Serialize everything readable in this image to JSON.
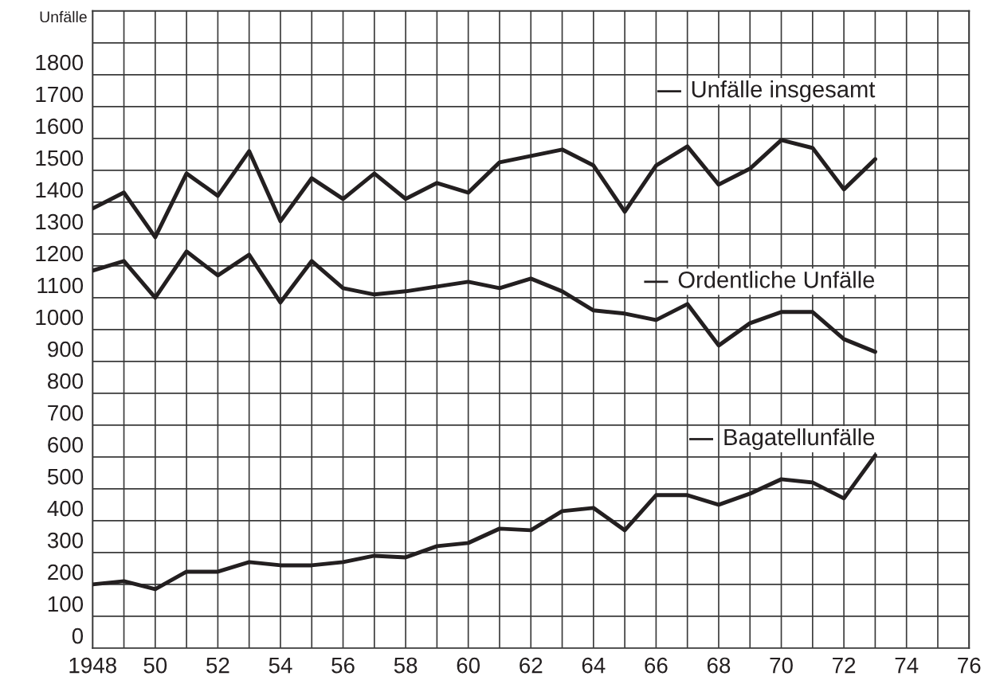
{
  "chart_data": {
    "type": "line",
    "ylabel": "Unfälle",
    "x": [
      1948,
      1949,
      1950,
      1951,
      1952,
      1953,
      1954,
      1955,
      1956,
      1957,
      1958,
      1959,
      1960,
      1961,
      1962,
      1963,
      1964,
      1965,
      1966,
      1967,
      1968,
      1969,
      1970,
      1971,
      1972,
      1973
    ],
    "series": [
      {
        "name": "Unfälle insgesamt",
        "color": "#231f20",
        "values": [
          1380,
          1430,
          1290,
          1490,
          1420,
          1560,
          1340,
          1475,
          1410,
          1490,
          1410,
          1460,
          1430,
          1525,
          1545,
          1565,
          1515,
          1370,
          1515,
          1575,
          1455,
          1505,
          1595,
          1570,
          1440,
          1535
        ]
      },
      {
        "name": "Ordentliche Unfälle",
        "color": "#231f20",
        "values": [
          1185,
          1215,
          1100,
          1245,
          1170,
          1235,
          1085,
          1215,
          1130,
          1110,
          1120,
          1135,
          1150,
          1130,
          1160,
          1120,
          1060,
          1050,
          1030,
          1080,
          950,
          1020,
          1055,
          1055,
          970,
          930
        ]
      },
      {
        "name": "Bagatellunfälle",
        "color": "#231f20",
        "values": [
          200,
          210,
          185,
          240,
          240,
          270,
          260,
          260,
          270,
          290,
          285,
          320,
          330,
          375,
          370,
          430,
          440,
          370,
          480,
          480,
          450,
          485,
          530,
          520,
          470,
          605
        ]
      }
    ],
    "xlim": [
      1948,
      1976
    ],
    "xticks": [
      1948,
      {
        "value": 1949,
        "label": null
      },
      {
        "value": 1950,
        "label": "50"
      },
      {
        "value": 1951,
        "label": null
      },
      {
        "value": 1952,
        "label": "52"
      },
      {
        "value": 1953,
        "label": null
      },
      {
        "value": 1954,
        "label": "54"
      },
      {
        "value": 1955,
        "label": null
      },
      {
        "value": 1956,
        "label": "56"
      },
      {
        "value": 1957,
        "label": null
      },
      {
        "value": 1958,
        "label": "58"
      },
      {
        "value": 1959,
        "label": null
      },
      {
        "value": 1960,
        "label": "60"
      },
      {
        "value": 1961,
        "label": null
      },
      {
        "value": 1962,
        "label": "62"
      },
      {
        "value": 1963,
        "label": null
      },
      {
        "value": 1964,
        "label": "64"
      },
      {
        "value": 1965,
        "label": null
      },
      {
        "value": 1966,
        "label": "66"
      },
      {
        "value": 1967,
        "label": null
      },
      {
        "value": 1968,
        "label": "68"
      },
      {
        "value": 1969,
        "label": null
      },
      {
        "value": 1970,
        "label": "70"
      },
      {
        "value": 1971,
        "label": null
      },
      {
        "value": 1972,
        "label": "72"
      },
      {
        "value": 1973,
        "label": null
      },
      {
        "value": 1974,
        "label": "74"
      },
      {
        "value": 1975,
        "label": null
      },
      {
        "value": 1976,
        "label": "76"
      }
    ],
    "ylim": [
      0,
      2000
    ],
    "yticks": [
      0,
      100,
      200,
      300,
      400,
      500,
      600,
      700,
      800,
      900,
      1000,
      1100,
      1200,
      1300,
      1400,
      1500,
      1600,
      1700,
      1800,
      {
        "value": 1900,
        "label": null
      }
    ],
    "grid": true,
    "legend": "right",
    "marker": "none",
    "line_style": "solid"
  }
}
